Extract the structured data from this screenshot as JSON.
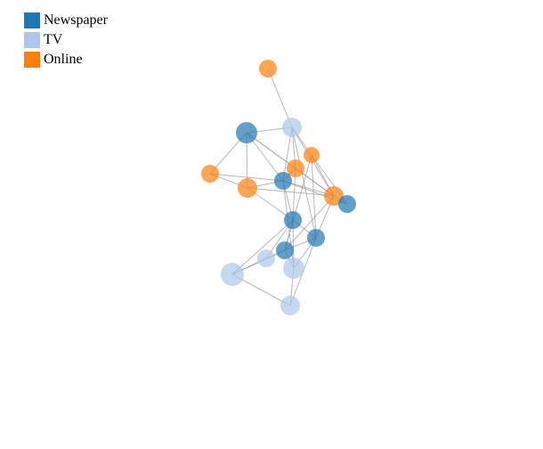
{
  "legend": {
    "items": [
      {
        "label": "Newspaper",
        "color": "#1f77b4"
      },
      {
        "label": "TV",
        "color": "#aec7e8"
      },
      {
        "label": "Online",
        "color": "#ff7f0e"
      }
    ]
  },
  "graph": {
    "nodes": [
      {
        "id": "o1",
        "group": "Online"
      },
      {
        "id": "n1",
        "group": "Newspaper"
      },
      {
        "id": "t1",
        "group": "TV"
      },
      {
        "id": "o2",
        "group": "Online"
      },
      {
        "id": "o3",
        "group": "Online"
      },
      {
        "id": "o4",
        "group": "Online"
      },
      {
        "id": "o5",
        "group": "Online"
      },
      {
        "id": "n2",
        "group": "Newspaper"
      },
      {
        "id": "o6",
        "group": "Online"
      },
      {
        "id": "n3",
        "group": "Newspaper"
      },
      {
        "id": "n4",
        "group": "Newspaper"
      },
      {
        "id": "n5",
        "group": "Newspaper"
      },
      {
        "id": "n6",
        "group": "Newspaper"
      },
      {
        "id": "t2",
        "group": "TV"
      },
      {
        "id": "t3",
        "group": "TV"
      },
      {
        "id": "t4",
        "group": "TV"
      },
      {
        "id": "t5",
        "group": "TV"
      }
    ],
    "links": [
      [
        "o1",
        "t1"
      ],
      [
        "n1",
        "t1"
      ],
      [
        "n1",
        "o4"
      ],
      [
        "n1",
        "o2"
      ],
      [
        "n1",
        "o5"
      ],
      [
        "n1",
        "n2"
      ],
      [
        "n1",
        "o6"
      ],
      [
        "t1",
        "o3"
      ],
      [
        "t1",
        "o4"
      ],
      [
        "t1",
        "n2"
      ],
      [
        "t1",
        "o6"
      ],
      [
        "t1",
        "n5"
      ],
      [
        "o3",
        "o6"
      ],
      [
        "o3",
        "n3"
      ],
      [
        "o3",
        "n5"
      ],
      [
        "o4",
        "n2"
      ],
      [
        "o4",
        "o6"
      ],
      [
        "o4",
        "n4"
      ],
      [
        "o2",
        "o5"
      ],
      [
        "o2",
        "n2"
      ],
      [
        "o5",
        "n2"
      ],
      [
        "o5",
        "o6"
      ],
      [
        "o5",
        "n4"
      ],
      [
        "n2",
        "o6"
      ],
      [
        "n2",
        "n4"
      ],
      [
        "n2",
        "n3"
      ],
      [
        "n2",
        "t4"
      ],
      [
        "o6",
        "n3"
      ],
      [
        "o6",
        "n5"
      ],
      [
        "o6",
        "n6"
      ],
      [
        "n4",
        "n5"
      ],
      [
        "n4",
        "n6"
      ],
      [
        "n4",
        "t2"
      ],
      [
        "n4",
        "t4"
      ],
      [
        "n4",
        "t3"
      ],
      [
        "n5",
        "n6"
      ],
      [
        "n5",
        "t4"
      ],
      [
        "n5",
        "t5"
      ],
      [
        "n6",
        "t2"
      ],
      [
        "n6",
        "t3"
      ],
      [
        "n6",
        "t4"
      ],
      [
        "t2",
        "t3"
      ],
      [
        "t3",
        "t5"
      ],
      [
        "t4",
        "t5"
      ],
      [
        "o3",
        "n6"
      ]
    ]
  }
}
